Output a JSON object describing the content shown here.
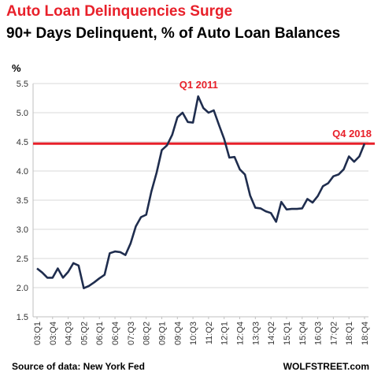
{
  "header": {
    "title": "Auto Loan Delinquencies Surge",
    "subtitle": "90+ Days Delinquent, % of Auto Loan Balances"
  },
  "footer": {
    "source": "Source of data: New York Fed",
    "brand": "WOLFSTREET.com"
  },
  "colors": {
    "title": "#e8202a",
    "line": "#1f2d4e",
    "reference_line": "#e8202a",
    "grid": "#d9d9d9"
  },
  "chart_data": {
    "type": "line",
    "title": "90+ Days Delinquent, % of Auto Loan Balances",
    "ylabel": "%",
    "ylim": [
      1.5,
      5.5
    ],
    "yticks": [
      1.5,
      2.0,
      2.5,
      3.0,
      3.5,
      4.0,
      4.5,
      5.0,
      5.5
    ],
    "xtick_labels": [
      "03:Q1",
      "03:Q4",
      "04:Q3",
      "05:Q2",
      "06:Q1",
      "06:Q4",
      "07:Q3",
      "08:Q2",
      "09:Q1",
      "09:Q4",
      "10:Q3",
      "11:Q2",
      "12:Q1",
      "12:Q4",
      "13:Q3",
      "14:Q2",
      "15:Q1",
      "15:Q4",
      "16:Q3",
      "17:Q2",
      "18:Q1",
      "18:Q4"
    ],
    "grid": true,
    "reference_line": {
      "y": 4.47
    },
    "annotations": [
      {
        "text": "Q1 2011",
        "x": "11:Q1"
      },
      {
        "text": "Q4 2018",
        "x": "18:Q4"
      }
    ],
    "series": [
      {
        "x": [
          "03:Q1",
          "03:Q2",
          "03:Q3",
          "03:Q4",
          "04:Q1",
          "04:Q2",
          "04:Q3",
          "04:Q4",
          "05:Q1",
          "05:Q2",
          "05:Q3",
          "05:Q4",
          "06:Q1",
          "06:Q2",
          "06:Q3",
          "06:Q4",
          "07:Q1",
          "07:Q2",
          "07:Q3",
          "07:Q4",
          "08:Q1",
          "08:Q2",
          "08:Q3",
          "08:Q4",
          "09:Q1",
          "09:Q2",
          "09:Q3",
          "09:Q4",
          "10:Q1",
          "10:Q2",
          "10:Q3",
          "10:Q4",
          "11:Q1",
          "11:Q2",
          "11:Q3",
          "11:Q4",
          "12:Q1",
          "12:Q2",
          "12:Q3",
          "12:Q4",
          "13:Q1",
          "13:Q2",
          "13:Q3",
          "13:Q4",
          "14:Q1",
          "14:Q2",
          "14:Q3",
          "14:Q4",
          "15:Q1",
          "15:Q2",
          "15:Q3",
          "15:Q4",
          "16:Q1",
          "16:Q2",
          "16:Q3",
          "16:Q4",
          "17:Q1",
          "17:Q2",
          "17:Q3",
          "17:Q4",
          "18:Q1",
          "18:Q2",
          "18:Q3",
          "18:Q4"
        ],
        "values": [
          2.33,
          2.26,
          2.17,
          2.17,
          2.33,
          2.17,
          2.27,
          2.42,
          2.38,
          1.99,
          2.03,
          2.09,
          2.16,
          2.22,
          2.59,
          2.62,
          2.61,
          2.56,
          2.76,
          3.05,
          3.21,
          3.25,
          3.65,
          3.97,
          4.36,
          4.44,
          4.62,
          4.92,
          5.0,
          4.84,
          4.83,
          5.28,
          5.08,
          5.0,
          5.04,
          4.79,
          4.55,
          4.23,
          4.24,
          4.03,
          3.94,
          3.58,
          3.37,
          3.36,
          3.31,
          3.28,
          3.13,
          3.47,
          3.34,
          3.35,
          3.35,
          3.36,
          3.52,
          3.46,
          3.57,
          3.74,
          3.79,
          3.91,
          3.94,
          4.03,
          4.25,
          4.16,
          4.25,
          4.47
        ]
      }
    ]
  }
}
